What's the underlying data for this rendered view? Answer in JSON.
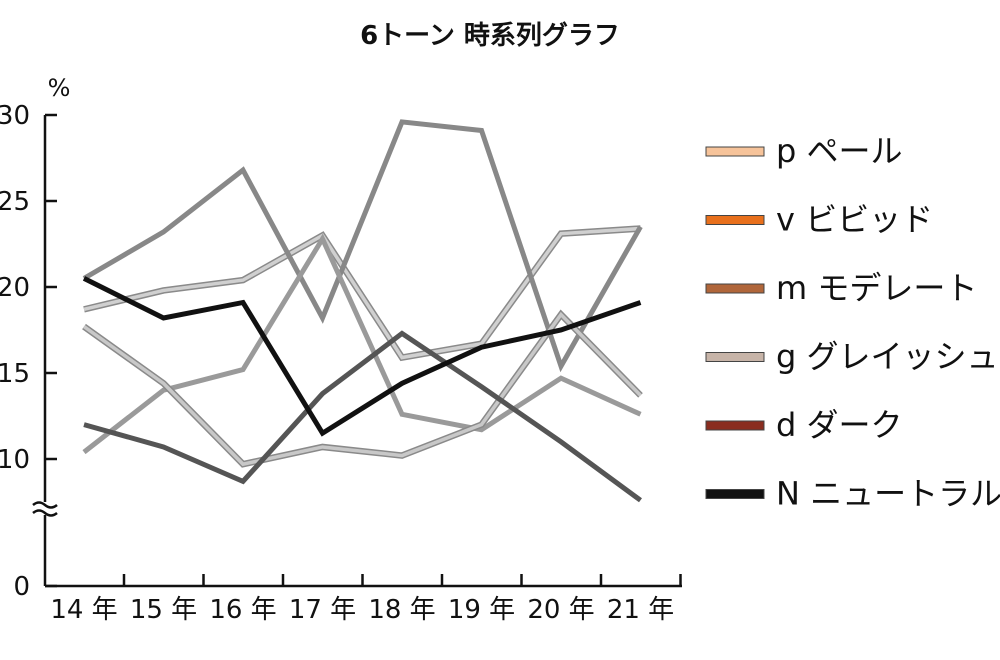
{
  "chart_data": {
    "type": "line",
    "title": "6トーン 時系列グラフ",
    "ylabel": "%",
    "xlabel": "",
    "ylim": [
      0,
      30
    ],
    "y_axis_break": true,
    "y_ticks": [
      "0",
      "10",
      "15",
      "20",
      "25",
      "30"
    ],
    "categories": [
      "14 年",
      "15 年",
      "16 年",
      "17 年",
      "18 年",
      "19 年",
      "20 年",
      "21 年"
    ],
    "grid": false,
    "legend_position": "right",
    "legend": [
      {
        "label": "p ペール",
        "color": "#f6c39a"
      },
      {
        "label": "v ビビッド",
        "color": "#e8701c"
      },
      {
        "label": "m モデレート",
        "color": "#b0663a"
      },
      {
        "label": "g グレイッシュ",
        "color": "#c7b4a8"
      },
      {
        "label": "d ダーク",
        "color": "#8a2d20"
      },
      {
        "label": "N ニュートラル",
        "color": "#111111"
      }
    ],
    "series": [
      {
        "color": "#d0d0d0",
        "values": [
          18.7,
          19.8,
          20.4,
          23.0,
          15.9,
          16.7,
          23.1,
          23.4
        ]
      },
      {
        "color": "#888888",
        "values": [
          20.5,
          23.2,
          26.8,
          18.2,
          29.6,
          29.1,
          15.4,
          23.5
        ]
      },
      {
        "color": "#9a9a9a",
        "values": [
          10.4,
          14.0,
          15.2,
          22.8,
          12.6,
          11.7,
          14.7,
          12.6
        ]
      },
      {
        "color": "#c8c8c8",
        "values": [
          17.7,
          14.4,
          9.7,
          10.7,
          10.2,
          12.0,
          18.4,
          13.7
        ]
      },
      {
        "color": "#555555",
        "values": [
          12.0,
          10.7,
          8.7,
          13.8,
          17.3,
          14.2,
          11.0,
          7.6
        ]
      },
      {
        "color": "#111111",
        "values": [
          20.5,
          18.2,
          19.1,
          11.5,
          14.4,
          16.5,
          17.5,
          19.1
        ]
      }
    ]
  }
}
